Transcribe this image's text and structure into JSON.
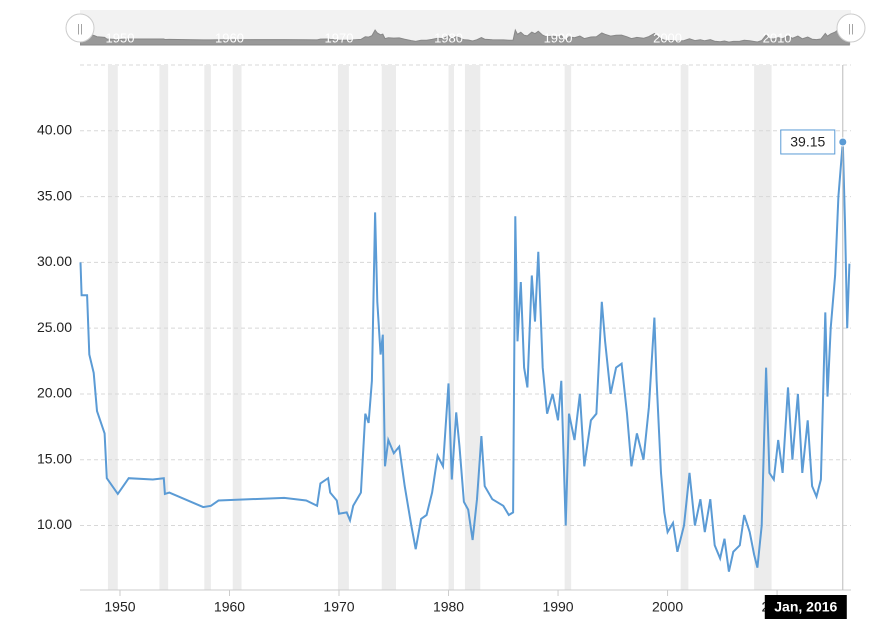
{
  "chart_data": {
    "type": "line",
    "x": [
      1946.4,
      1946.5,
      1947,
      1947.2,
      1947.6,
      1947.9,
      1948.6,
      1948.8,
      1949.8,
      1950.8,
      1953,
      1954,
      1954.1,
      1954.5,
      1957.6,
      1958.3,
      1959,
      1965,
      1967,
      1968,
      1968.3,
      1969,
      1969.2,
      1969.8,
      1970,
      1970.7,
      1971,
      1971.3,
      1972,
      1972.4,
      1972.7,
      1973,
      1973.3,
      1973.5,
      1973.8,
      1974,
      1974.2,
      1974.5,
      1975,
      1975.5,
      1976,
      1976.6,
      1977,
      1977.5,
      1978,
      1978.5,
      1979,
      1979.5,
      1980,
      1980.3,
      1980.7,
      1981,
      1981.4,
      1981.8,
      1982.2,
      1982.6,
      1983,
      1983.3,
      1984,
      1985,
      1985.5,
      1985.9,
      1986.1,
      1986.3,
      1986.6,
      1986.9,
      1987.2,
      1987.6,
      1987.9,
      1988.2,
      1988.6,
      1989,
      1989.5,
      1990,
      1990.3,
      1990.7,
      1991,
      1991.5,
      1992,
      1992.4,
      1993,
      1993.5,
      1994,
      1994.3,
      1994.8,
      1995.3,
      1995.8,
      1996.3,
      1996.7,
      1997.2,
      1997.8,
      1998.3,
      1998.8,
      1999,
      1999.4,
      1999.7,
      2000,
      2000.5,
      2000.9,
      2001.5,
      2002,
      2002.5,
      2003,
      2003.4,
      2003.9,
      2004.3,
      2004.8,
      2005.2,
      2005.6,
      2006,
      2006.6,
      2007,
      2007.5,
      2007.9,
      2008.2,
      2008.6,
      2009,
      2009.3,
      2009.7,
      2010.1,
      2010.5,
      2011,
      2011.4,
      2011.9,
      2012.3,
      2012.8,
      2013.2,
      2013.6,
      2014,
      2014.4,
      2014.6,
      2014.9,
      2015.3,
      2015.6,
      2016.0,
      2016.2,
      2016.4,
      2016.6
    ],
    "values": [
      30,
      27.5,
      27.5,
      23,
      21.6,
      18.7,
      17,
      13.6,
      12.4,
      13.6,
      13.5,
      13.6,
      12.4,
      12.5,
      11.4,
      11.5,
      11.9,
      12.1,
      11.9,
      11.5,
      13.2,
      13.6,
      12.5,
      11.9,
      10.9,
      11,
      10.4,
      11.5,
      12.5,
      18.5,
      17.8,
      21,
      33.8,
      27,
      23,
      24.5,
      14.5,
      16.5,
      15.5,
      16,
      13,
      10,
      8.2,
      10.5,
      10.8,
      12.5,
      15.3,
      14.5,
      20.8,
      13.5,
      18.6,
      16,
      11.8,
      11.2,
      8.9,
      12,
      16.8,
      13,
      12,
      11.5,
      10.8,
      11,
      33.5,
      24,
      28.5,
      22,
      20.5,
      29,
      25.5,
      30.8,
      22,
      18.5,
      20,
      18,
      21,
      10,
      18.5,
      16.5,
      20,
      14.5,
      18,
      18.5,
      27,
      24,
      20,
      22,
      22.3,
      18.5,
      14.5,
      17,
      15,
      19,
      25.8,
      21,
      14,
      11,
      9.5,
      10.2,
      8,
      10,
      14,
      10,
      12,
      9.5,
      12,
      8.5,
      7.5,
      9,
      6.5,
      8,
      8.5,
      10.8,
      9.5,
      7.8,
      6.8,
      10,
      22,
      14,
      13.5,
      16.5,
      14,
      20.5,
      15,
      20,
      14,
      18,
      13,
      12.2,
      13.5,
      26.2,
      19.8,
      25,
      29,
      35,
      39.15,
      33,
      25,
      29.9
    ],
    "color": "#5b9bd5",
    "xlim": [
      1946.35,
      2016.75
    ],
    "ylim": [
      5.1,
      45
    ],
    "xticks": [
      1950,
      1960,
      1970,
      1980,
      1990,
      2000,
      2010
    ],
    "yticks": [
      {
        "value": 10,
        "label": "10.00"
      },
      {
        "value": 15,
        "label": "15.00"
      },
      {
        "value": 20,
        "label": "20.00"
      },
      {
        "value": 25,
        "label": "25.00"
      },
      {
        "value": 30,
        "label": "30.00"
      },
      {
        "value": 35,
        "label": "35.00"
      },
      {
        "value": 40,
        "label": "40.00"
      }
    ],
    "grid": true,
    "recessions": [
      [
        1948.9,
        1949.8
      ],
      [
        1953.6,
        1954.4
      ],
      [
        1957.7,
        1958.3
      ],
      [
        1960.3,
        1961.1
      ],
      [
        1969.9,
        1970.9
      ],
      [
        1973.9,
        1975.2
      ],
      [
        1980.0,
        1980.5
      ],
      [
        1981.5,
        1982.9
      ],
      [
        1990.6,
        1991.2
      ],
      [
        2001.2,
        2001.9
      ],
      [
        2007.9,
        2009.5
      ]
    ],
    "tooltip": {
      "x": 2016.0,
      "value": 39.15,
      "label": "Jan, 2016"
    }
  }
}
